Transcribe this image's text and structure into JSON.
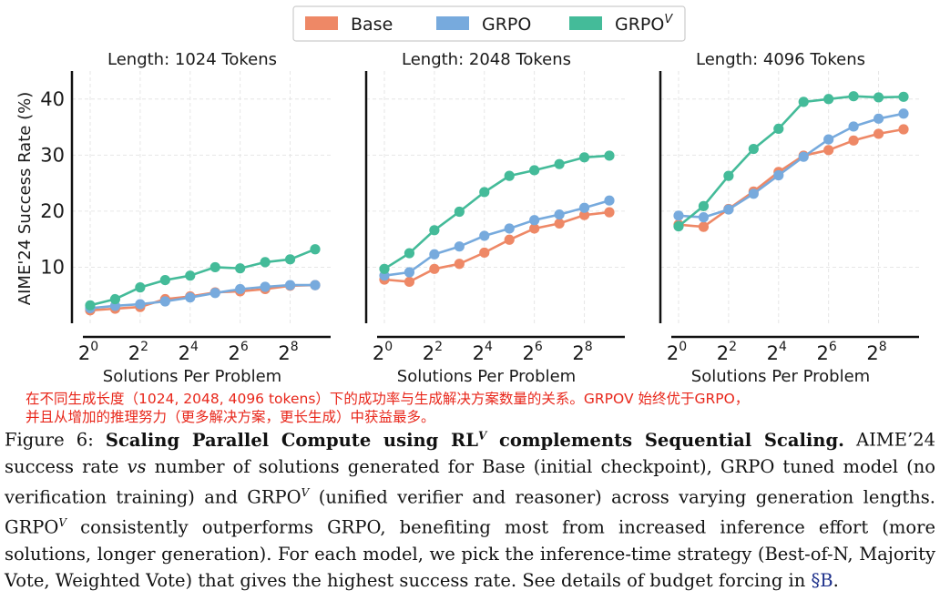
{
  "legend": {
    "items": [
      {
        "label": "Base",
        "color": "#ee8866"
      },
      {
        "label": "GRPO",
        "color": "#77aadd"
      },
      {
        "label": "GRPO",
        "sup": "V",
        "color": "#44bb99"
      }
    ]
  },
  "chart_data": {
    "type": "line",
    "ylabel": "AIME'24 Success Rate (%)",
    "xlabel": "Solutions Per Problem",
    "x": [
      1,
      2,
      4,
      8,
      16,
      32,
      64,
      128,
      256,
      512
    ],
    "xscale": "log2",
    "xticks": [
      {
        "base": "2",
        "exp": "0"
      },
      {
        "base": "2",
        "exp": "2"
      },
      {
        "base": "2",
        "exp": "4"
      },
      {
        "base": "2",
        "exp": "6"
      },
      {
        "base": "2",
        "exp": "8"
      }
    ],
    "yticks": [
      "10",
      "20",
      "30",
      "40"
    ],
    "ylim": [
      0,
      45
    ],
    "grid": true,
    "panels": [
      {
        "title": "Length: 1024 Tokens",
        "series": [
          {
            "name": "Base",
            "color": "#ee8866",
            "values": [
              2.3,
              2.6,
              2.9,
              4.3,
              4.8,
              5.5,
              5.7,
              6.1,
              6.7,
              6.8
            ]
          },
          {
            "name": "GRPO",
            "color": "#77aadd",
            "values": [
              2.7,
              3.1,
              3.4,
              3.9,
              4.6,
              5.4,
              6.1,
              6.5,
              6.8,
              6.8
            ]
          },
          {
            "name": "GRPO^V",
            "color": "#44bb99",
            "values": [
              3.2,
              4.3,
              6.4,
              7.7,
              8.5,
              10.0,
              9.8,
              10.9,
              11.4,
              13.2
            ]
          }
        ]
      },
      {
        "title": "Length: 2048 Tokens",
        "series": [
          {
            "name": "Base",
            "color": "#ee8866",
            "values": [
              7.8,
              7.4,
              9.7,
              10.6,
              12.6,
              14.9,
              16.9,
              17.8,
              19.3,
              19.8
            ]
          },
          {
            "name": "GRPO",
            "color": "#77aadd",
            "values": [
              8.5,
              9.1,
              12.3,
              13.7,
              15.6,
              16.9,
              18.4,
              19.4,
              20.6,
              21.9
            ]
          },
          {
            "name": "GRPO^V",
            "color": "#44bb99",
            "values": [
              9.7,
              12.5,
              16.6,
              19.9,
              23.4,
              26.3,
              27.3,
              28.4,
              29.6,
              29.9
            ]
          }
        ]
      },
      {
        "title": "Length: 4096 Tokens",
        "series": [
          {
            "name": "Base",
            "color": "#ee8866",
            "values": [
              17.6,
              17.2,
              20.4,
              23.5,
              27.0,
              29.9,
              30.9,
              32.6,
              33.8,
              34.6
            ]
          },
          {
            "name": "GRPO",
            "color": "#77aadd",
            "values": [
              19.2,
              18.9,
              20.3,
              23.1,
              26.4,
              29.7,
              32.8,
              35.1,
              36.5,
              37.4
            ]
          },
          {
            "name": "GRPO^V",
            "color": "#44bb99",
            "values": [
              17.3,
              20.9,
              26.3,
              31.1,
              34.7,
              39.5,
              40.0,
              40.5,
              40.3,
              40.4
            ]
          }
        ]
      }
    ]
  },
  "annotation": {
    "line1": "在不同生成长度（1024, 2048, 4096 tokens）下的成功率与生成解决方案数量的关系。GRPOV 始终优于GRPO，",
    "line2": "并且从增加的推理努力（更多解决方案，更长生成）中获益最多。"
  },
  "caption": {
    "prefix": "Figure 6: ",
    "bold_title_a": "Scaling Parallel Compute using RL",
    "bold_title_sup": "V",
    "bold_title_b": " complements Sequential Scaling.",
    "seg1": " AIME’24 success rate ",
    "vs": "vs",
    "seg2": " number of solutions generated for Base (initial checkpoint), GRPO tuned model (no verification training) and GRPO",
    "sup1": "V",
    "seg3": " (unified verifier and reasoner) across varying generation lengths. GRPO",
    "sup2": "V",
    "seg4": " consistently outperforms GRPO, benefiting most from increased inference effort (more solutions, longer generation). For each model, we pick the inference-time strategy (Best-of-N, Majority Vote, Weighted Vote) that gives the highest success rate. See details of budget forcing in ",
    "ref": "§B",
    "end": "."
  }
}
